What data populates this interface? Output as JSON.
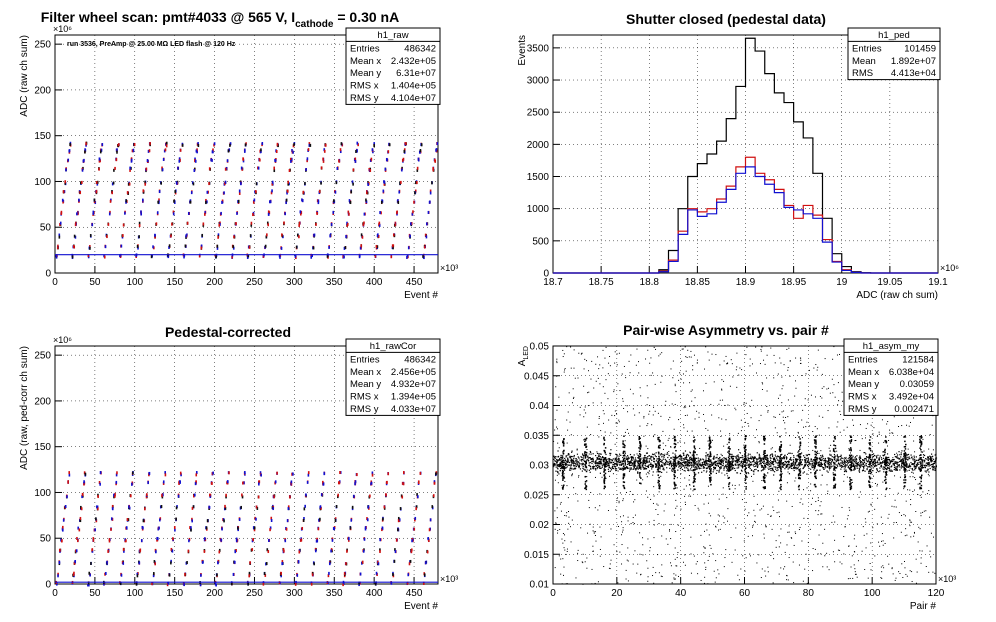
{
  "chart_data": [
    {
      "type": "scatter",
      "title": "Filter wheel scan: pmt#4033 @   565 V, I",
      "title_sub": "cathode",
      "title_tail": " = 0.30 nA",
      "annotation": "run 3536, PreAmp @ 25.00 MΩ LED flash @  120 Hz",
      "xlabel": "Event #",
      "ylabel": "ADC (raw ch sum)",
      "x_exponent": "×10³",
      "y_exponent": "×10⁶",
      "xlim": [
        0,
        480
      ],
      "ylim": [
        0,
        260
      ],
      "xticks": [
        "0",
        "50",
        "100",
        "150",
        "200",
        "250",
        "300",
        "350",
        "400",
        "450"
      ],
      "yticks": [
        "0",
        "50",
        "100",
        "150",
        "200",
        "250"
      ],
      "grid": true,
      "band_levels": [
        20,
        30,
        42,
        55,
        67,
        80,
        90,
        100,
        115,
        125,
        135,
        142
      ],
      "period": 20,
      "stats": {
        "name": "h1_raw",
        "rows": [
          {
            "label": "Entries",
            "value": "486342"
          },
          {
            "label": "Mean x",
            "value": "2.432e+05"
          },
          {
            "label": "Mean y",
            "value": "6.31e+07"
          },
          {
            "label": "RMS x",
            "value": "1.404e+05"
          },
          {
            "label": "RMS y",
            "value": "4.104e+07"
          }
        ]
      }
    },
    {
      "type": "line",
      "title": "Shutter closed (pedestal data)",
      "xlabel": "ADC (raw ch sum)",
      "ylabel": "Events",
      "x_exponent": "×10⁶",
      "xlim": [
        18.7,
        19.1
      ],
      "ylim": [
        0,
        3700
      ],
      "xticks": [
        "18.7",
        "18.75",
        "18.8",
        "18.85",
        "18.9",
        "18.95",
        "19",
        "19.05",
        "19.1"
      ],
      "yticks": [
        "0",
        "500",
        "1000",
        "1500",
        "2000",
        "2500",
        "3000",
        "3500"
      ],
      "grid": true,
      "x": [
        18.8,
        18.81,
        18.82,
        18.83,
        18.84,
        18.85,
        18.86,
        18.87,
        18.88,
        18.89,
        18.9,
        18.91,
        18.92,
        18.93,
        18.94,
        18.95,
        18.96,
        18.97,
        18.98,
        18.99,
        19.0,
        19.01,
        19.02,
        19.03
      ],
      "series": [
        {
          "color": "#000000",
          "values": [
            0,
            50,
            350,
            1000,
            1500,
            1700,
            1850,
            2050,
            2400,
            2900,
            3650,
            3450,
            3100,
            2800,
            2650,
            2350,
            2100,
            1550,
            850,
            300,
            100,
            20,
            5,
            0
          ]
        },
        {
          "color": "#d01010",
          "values": [
            0,
            30,
            200,
            650,
            1000,
            950,
            1000,
            1150,
            1350,
            1650,
            1800,
            1550,
            1450,
            1300,
            1050,
            850,
            1050,
            900,
            520,
            180,
            50,
            10,
            0,
            0
          ]
        },
        {
          "color": "#1010d0",
          "values": [
            0,
            20,
            180,
            600,
            980,
            880,
            920,
            1100,
            1300,
            1550,
            1650,
            1500,
            1380,
            1250,
            1020,
            980,
            920,
            850,
            480,
            170,
            40,
            10,
            0,
            0
          ]
        }
      ],
      "stats": {
        "name": "h1_ped",
        "rows": [
          {
            "label": "Entries",
            "value": "101459"
          },
          {
            "label": "Mean",
            "value": "1.892e+07"
          },
          {
            "label": "RMS",
            "value": "4.413e+04"
          }
        ]
      }
    },
    {
      "type": "scatter",
      "title": "Pedestal-corrected",
      "xlabel": "Event #",
      "ylabel": "ADC (raw, ped-corr ch sum)",
      "x_exponent": "×10³",
      "y_exponent": "×10⁶",
      "xlim": [
        0,
        480
      ],
      "ylim": [
        0,
        260
      ],
      "xticks": [
        "0",
        "50",
        "100",
        "150",
        "200",
        "250",
        "300",
        "350",
        "400",
        "450"
      ],
      "yticks": [
        "0",
        "50",
        "100",
        "150",
        "200",
        "250"
      ],
      "grid": true,
      "band_levels": [
        2,
        12,
        25,
        38,
        50,
        62,
        72,
        85,
        98,
        112,
        122
      ],
      "period": 20,
      "stats": {
        "name": "h1_rawCor",
        "rows": [
          {
            "label": "Entries",
            "value": "486342"
          },
          {
            "label": "Mean x",
            "value": "2.456e+05"
          },
          {
            "label": "Mean y",
            "value": "4.932e+07"
          },
          {
            "label": "RMS x",
            "value": "1.394e+05"
          },
          {
            "label": "RMS y",
            "value": "4.033e+07"
          }
        ]
      }
    },
    {
      "type": "scatter",
      "title": "Pair-wise Asymmetry vs. pair #",
      "xlabel": "Pair #",
      "ylabel": "A",
      "ylabel_sub": "LED",
      "x_exponent": "×10³",
      "xlim": [
        0,
        120
      ],
      "ylim": [
        0.01,
        0.05
      ],
      "xticks": [
        "0",
        "20",
        "40",
        "60",
        "80",
        "100",
        "120"
      ],
      "yticks": [
        "0.01",
        "0.015",
        "0.02",
        "0.025",
        "0.03",
        "0.035",
        "0.04",
        "0.045",
        "0.05"
      ],
      "grid": true,
      "band_center": 0.0305,
      "spike_x": [
        3,
        10,
        16,
        22,
        27,
        33,
        38,
        44,
        49,
        55,
        60,
        66,
        71,
        77,
        82,
        88,
        93,
        99,
        104,
        110,
        115
      ],
      "stats": {
        "name": "h1_asym_my",
        "rows": [
          {
            "label": "Entries",
            "value": "121584"
          },
          {
            "label": "Mean x",
            "value": "6.038e+04"
          },
          {
            "label": "Mean y",
            "value": "0.03059"
          },
          {
            "label": "RMS x",
            "value": "3.492e+04"
          },
          {
            "label": "RMS y",
            "value": "0.002471"
          }
        ]
      }
    }
  ]
}
